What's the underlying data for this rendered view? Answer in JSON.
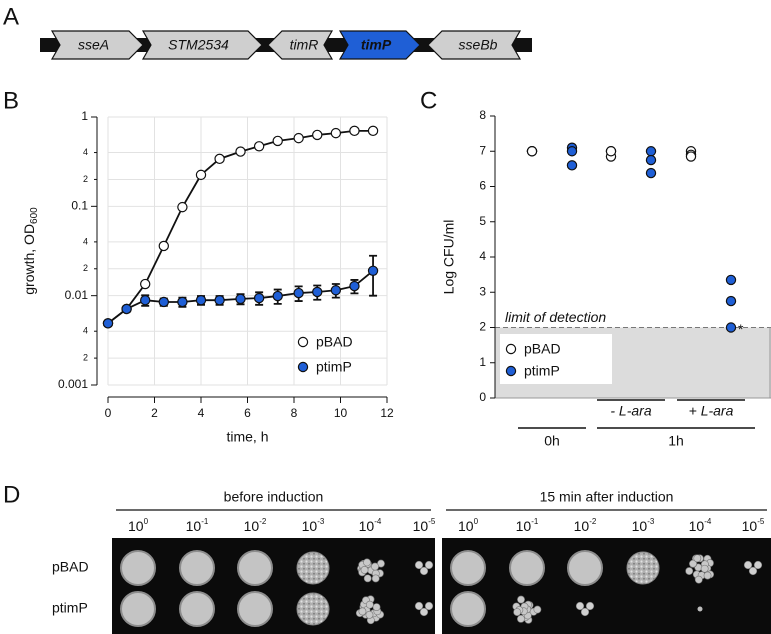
{
  "panel_a": {
    "label": "A",
    "genes": [
      {
        "name": "sseA",
        "direction": "right"
      },
      {
        "name": "STM2534",
        "direction": "right"
      },
      {
        "name": "timR",
        "direction": "left"
      },
      {
        "name": "timP",
        "direction": "right",
        "color": "#1f5fd6"
      },
      {
        "name": "sseBb",
        "direction": "left"
      }
    ]
  },
  "chart_data": [
    {
      "label": "B",
      "type": "line",
      "log_y": true,
      "grid": true,
      "xlabel": "time, h",
      "ylabel": "growth, OD",
      "ylabel_subscript": "600",
      "xlim": [
        0,
        12
      ],
      "xticks": [
        0,
        2,
        4,
        6,
        8,
        10,
        12
      ],
      "ylim": [
        0.001,
        1
      ],
      "yticks": [
        0.001,
        {
          "value": 0.002,
          "label": "2"
        },
        {
          "value": 0.004,
          "label": "4"
        },
        0.01,
        {
          "value": 0.02,
          "label": "2"
        },
        {
          "value": 0.04,
          "label": "4"
        },
        0.1,
        {
          "value": 0.2,
          "label": "2"
        },
        {
          "value": 0.4,
          "label": "4"
        },
        1
      ],
      "legend": "lower right",
      "x": [
        0,
        0.8,
        1.6,
        2.4,
        3.2,
        4.0,
        4.8,
        5.7,
        6.5,
        7.3,
        8.2,
        9.0,
        9.8,
        10.6,
        11.4
      ],
      "series": [
        {
          "name": "pBAD",
          "color": "#ffffff",
          "values": [
            0.0049,
            0.0071,
            0.0135,
            0.036,
            0.098,
            0.225,
            0.34,
            0.41,
            0.47,
            0.54,
            0.58,
            0.63,
            0.66,
            0.7,
            0.7
          ]
        },
        {
          "name": "ptimP",
          "color": "#1f5fd6",
          "values": [
            0.0049,
            0.0071,
            0.0089,
            0.0085,
            0.0085,
            0.0089,
            0.0089,
            0.0092,
            0.0094,
            0.0099,
            0.0107,
            0.011,
            0.0115,
            0.0128,
            0.019
          ],
          "errors": [
            0,
            0.0005,
            0.0012,
            0.0008,
            0.001,
            0.001,
            0.001,
            0.0012,
            0.0015,
            0.0018,
            0.002,
            0.002,
            0.002,
            0.0022,
            0.009
          ]
        }
      ]
    },
    {
      "label": "C",
      "type": "strip",
      "ylabel": "Log CFU/ml",
      "ylim": [
        0,
        8
      ],
      "yticks": [
        0,
        1,
        2,
        3,
        4,
        5,
        6,
        7,
        8
      ],
      "categories": [
        "0h",
        "- L-ara",
        "+ L-ara"
      ],
      "category_group": {
        "label": "1h",
        "from": 1,
        "to": 2
      },
      "detection_limit": 2,
      "detection_label": "limit of detection",
      "annotation": "*",
      "legend": "lower left",
      "series": [
        {
          "name": "pBAD",
          "color": "#ffffff",
          "values": [
            [
              7.0,
              7.0,
              7.0
            ],
            [
              7.0,
              6.85,
              7.0
            ],
            [
              7.0,
              6.9,
              6.85
            ]
          ]
        },
        {
          "name": "ptimP",
          "color": "#1f5fd6",
          "values": [
            [
              7.1,
              7.0,
              6.6
            ],
            [
              7.0,
              6.75,
              6.38
            ],
            [
              3.35,
              2.75,
              2.0
            ]
          ]
        }
      ]
    }
  ],
  "panel_d": {
    "label": "D",
    "conditions": [
      "before induction",
      "15 min after induction"
    ],
    "dilutions": [
      {
        "base": "10",
        "exponent": "0"
      },
      {
        "base": "10",
        "exponent": "-1"
      },
      {
        "base": "10",
        "exponent": "-2"
      },
      {
        "base": "10",
        "exponent": "-3"
      },
      {
        "base": "10",
        "exponent": "-4"
      },
      {
        "base": "10",
        "exponent": "-5"
      }
    ],
    "strains": [
      "pBAD",
      "ptimP"
    ]
  }
}
